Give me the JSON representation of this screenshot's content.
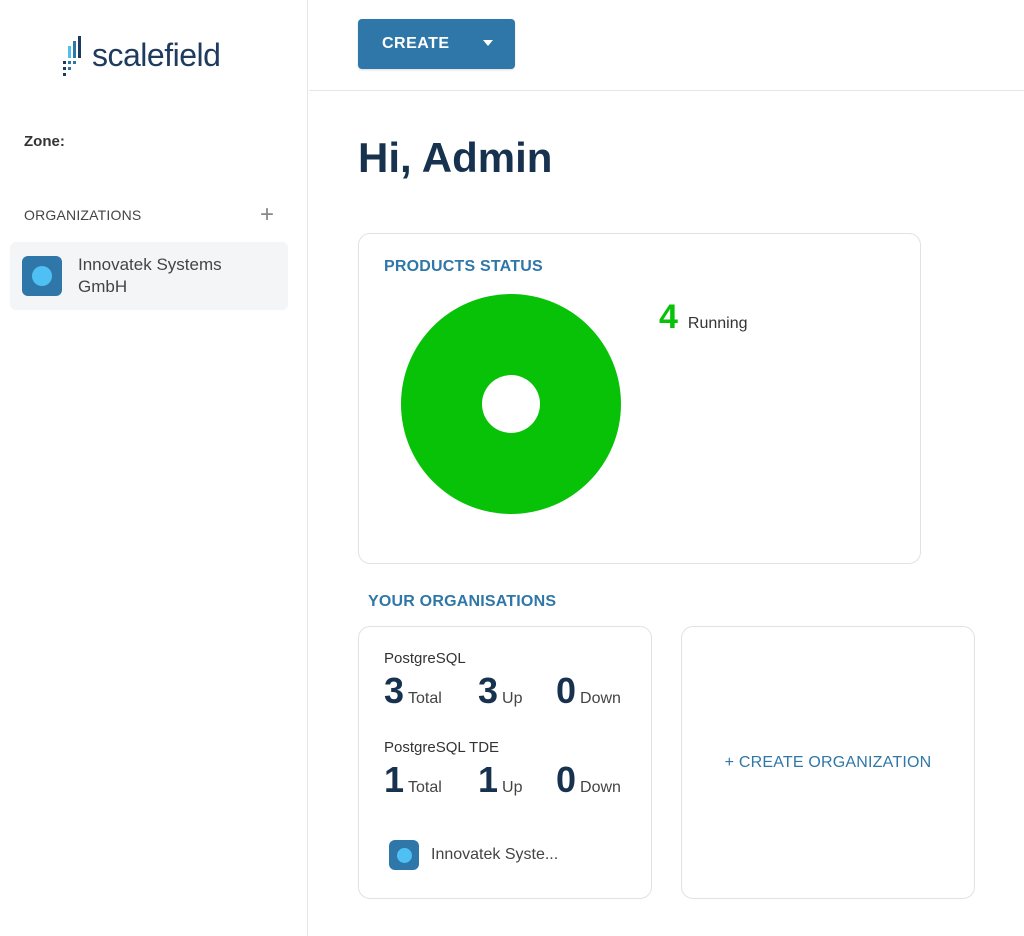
{
  "brand": {
    "name": "scalefield"
  },
  "sidebar": {
    "zone_label": "Zone:",
    "organizations_title": "ORGANIZATIONS",
    "add_symbol": "+",
    "items": [
      {
        "label": "Innovatek Systems GmbH"
      }
    ]
  },
  "toolbar": {
    "create_label": "CREATE"
  },
  "greeting": "Hi, Admin",
  "products_status": {
    "title": "PRODUCTS STATUS",
    "running_count": "4",
    "running_label": "Running"
  },
  "chart_data": {
    "type": "pie",
    "title": "PRODUCTS STATUS",
    "categories": [
      "Running"
    ],
    "values": [
      4
    ],
    "colors": [
      "#08c208"
    ]
  },
  "organisations": {
    "title": "YOUR ORGANISATIONS",
    "card": {
      "products": [
        {
          "name": "PostgreSQL",
          "total": "3",
          "total_label": "Total",
          "up": "3",
          "up_label": "Up",
          "down": "0",
          "down_label": "Down"
        },
        {
          "name": "PostgreSQL TDE",
          "total": "1",
          "total_label": "Total",
          "up": "1",
          "up_label": "Up",
          "down": "0",
          "down_label": "Down"
        }
      ],
      "org_name": "Innovatek Syste..."
    },
    "create_label": "+ CREATE ORGANIZATION"
  },
  "colors": {
    "primary": "#2f77a8",
    "heading": "#17324f",
    "running": "#08c208",
    "org_dot": "#4fc0f3"
  }
}
